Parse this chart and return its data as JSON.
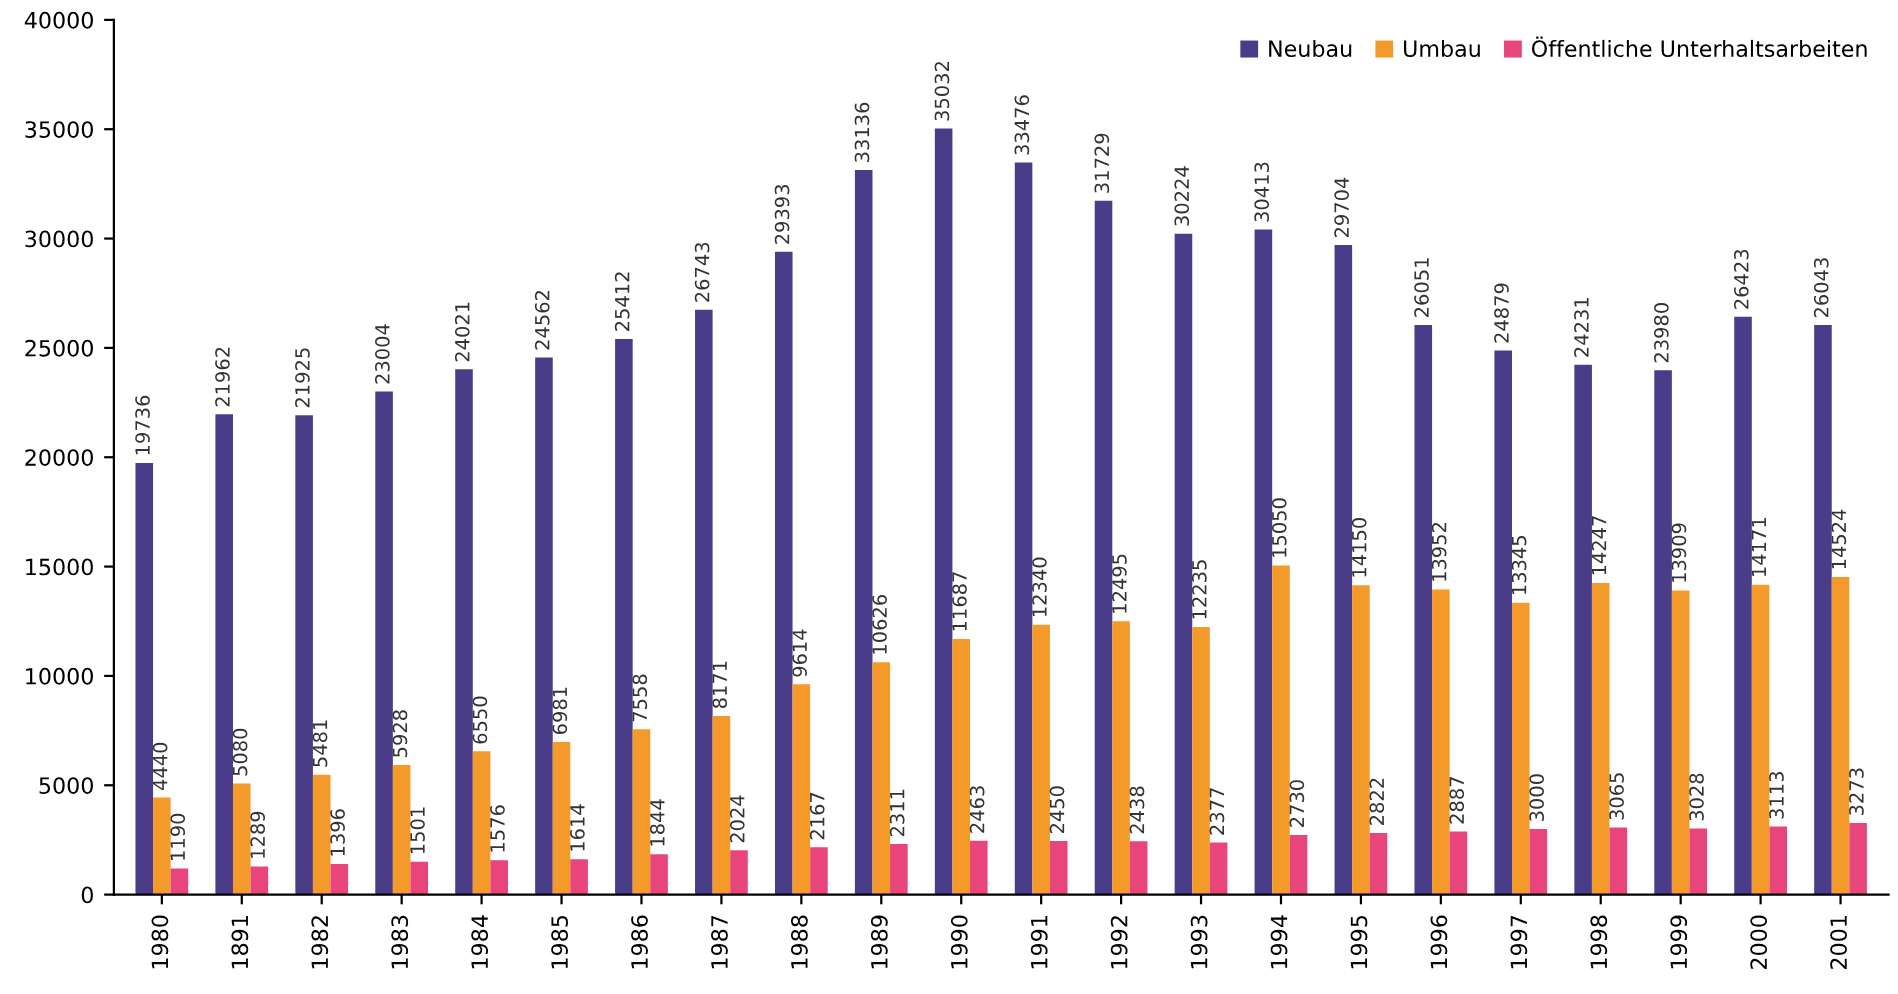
{
  "chart_data": {
    "type": "bar",
    "categories": [
      "1980",
      "1891",
      "1982",
      "1983",
      "1984",
      "1985",
      "1986",
      "1987",
      "1988",
      "1989",
      "1990",
      "1991",
      "1992",
      "1993",
      "1994",
      "1995",
      "1996",
      "1997",
      "1998",
      "1999",
      "2000",
      "2001"
    ],
    "series": [
      {
        "name": "Neubau",
        "color": "#4b3c8a",
        "values": [
          19736,
          21962,
          21925,
          23004,
          24021,
          24562,
          25412,
          26743,
          29393,
          33136,
          35032,
          33476,
          31729,
          30224,
          30413,
          29704,
          26051,
          24879,
          24231,
          23980,
          26423,
          26043
        ]
      },
      {
        "name": "Umbau",
        "color": "#f39a2b",
        "values": [
          4440,
          5080,
          5481,
          5928,
          6550,
          6981,
          7558,
          8171,
          9614,
          10626,
          11687,
          12340,
          12495,
          12235,
          15050,
          14150,
          13952,
          13345,
          14247,
          13909,
          14171,
          14524
        ]
      },
      {
        "name": "Öffentliche Unterhaltsarbeiten",
        "color": "#e8457a",
        "values": [
          1190,
          1289,
          1396,
          1501,
          1576,
          1614,
          1844,
          2024,
          2167,
          2311,
          2463,
          2450,
          2438,
          2377,
          2730,
          2822,
          2887,
          3000,
          3065,
          3028,
          3113,
          3273
        ]
      }
    ],
    "ylim": [
      0,
      40000
    ],
    "yticks": [
      0,
      5000,
      10000,
      15000,
      20000,
      25000,
      30000,
      35000,
      40000
    ],
    "data_labels": true,
    "grid": false,
    "legend": "top right"
  }
}
